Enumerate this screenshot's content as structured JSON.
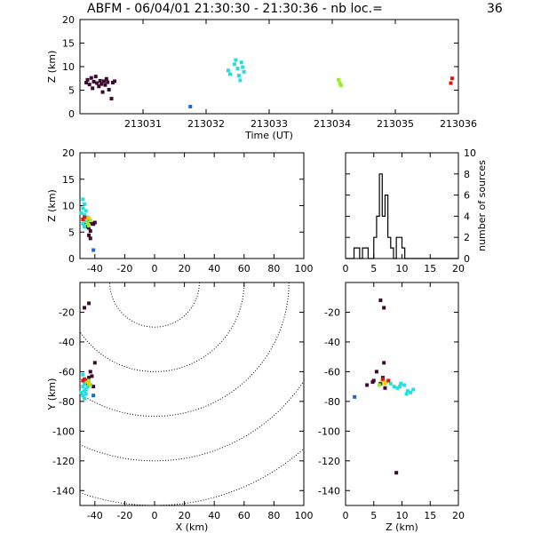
{
  "header": {
    "title": "ABFM - 06/04/01 21:30:30 - 21:30:36 - nb loc.=",
    "count": "36"
  },
  "chart_data": [
    {
      "id": "time_panel",
      "type": "scatter",
      "xlabel": "Time (UT)",
      "ylabel": "Z (km)",
      "xlim": [
        213030.0,
        213036.0
      ],
      "ylim": [
        0,
        20
      ],
      "xticks": [
        213031,
        213032,
        213033,
        213034,
        213035,
        213036
      ],
      "yticks": [
        0,
        5,
        10,
        15,
        20
      ],
      "series": [
        {
          "color": "#3c0a30",
          "points": [
            [
              213030.1,
              6.6
            ],
            [
              213030.12,
              7.2
            ],
            [
              213030.15,
              6.2
            ],
            [
              213030.18,
              7.6
            ],
            [
              213030.2,
              5.4
            ],
            [
              213030.22,
              6.8
            ],
            [
              213030.25,
              7.9
            ],
            [
              213030.27,
              6.5
            ],
            [
              213030.3,
              5.8
            ],
            [
              213030.32,
              7.0
            ],
            [
              213030.34,
              6.3
            ],
            [
              213030.36,
              4.6
            ],
            [
              213030.38,
              6.9
            ],
            [
              213030.4,
              6.1
            ],
            [
              213030.42,
              7.4
            ],
            [
              213030.44,
              6.7
            ],
            [
              213030.46,
              5.1
            ],
            [
              213030.5,
              3.2
            ],
            [
              213030.52,
              6.6
            ],
            [
              213030.55,
              6.9
            ]
          ]
        },
        {
          "color": "#1a66dd",
          "points": [
            [
              213031.75,
              1.5
            ]
          ]
        },
        {
          "color": "#22e0e0",
          "points": [
            [
              213032.35,
              9.2
            ],
            [
              213032.38,
              8.4
            ],
            [
              213032.45,
              10.5
            ],
            [
              213032.47,
              11.4
            ],
            [
              213032.5,
              9.6
            ],
            [
              213032.52,
              8.1
            ],
            [
              213032.54,
              7.1
            ],
            [
              213032.56,
              10.9
            ],
            [
              213032.58,
              9.9
            ],
            [
              213032.6,
              8.9
            ]
          ]
        },
        {
          "color": "#99ee22",
          "points": [
            [
              213034.1,
              7.2
            ],
            [
              213034.12,
              6.5
            ],
            [
              213034.14,
              6.0
            ]
          ]
        },
        {
          "color": "#ee1111",
          "points": [
            [
              213035.88,
              6.5
            ],
            [
              213035.9,
              7.5
            ]
          ]
        }
      ]
    },
    {
      "id": "xz_panel",
      "type": "scatter",
      "ylabel": "Z (km)",
      "xlim": [
        -50,
        100
      ],
      "ylim": [
        0,
        20
      ],
      "xticks": [
        -40,
        -20,
        0,
        20,
        40,
        60,
        80,
        100
      ],
      "yticks": [
        0,
        5,
        10,
        15,
        20
      ],
      "series": [
        {
          "color": "#3c0a30",
          "points": [
            [
              -46,
              6.8
            ],
            [
              -44,
              7.0
            ],
            [
              -43,
              5.2
            ],
            [
              -41,
              6.5
            ],
            [
              -40,
              6.8
            ],
            [
              -44,
              4.4
            ],
            [
              -43,
              3.8
            ],
            [
              -45,
              6.0
            ],
            [
              -42,
              6.6
            ],
            [
              -44,
              5.8
            ]
          ]
        },
        {
          "color": "#1a66dd",
          "points": [
            [
              -41,
              1.6
            ]
          ]
        },
        {
          "color": "#22e0e0",
          "points": [
            [
              -48,
              11.2
            ],
            [
              -47,
              10.3
            ],
            [
              -48,
              9.5
            ],
            [
              -46,
              9.0
            ],
            [
              -49,
              8.6
            ],
            [
              -47,
              8.2
            ],
            [
              -45,
              7.8
            ],
            [
              -46,
              7.0
            ],
            [
              -48,
              6.6
            ],
            [
              -47,
              6.0
            ]
          ]
        },
        {
          "color": "#99ee22",
          "points": [
            [
              -45,
              6.8
            ],
            [
              -44,
              6.2
            ],
            [
              -43,
              7.2
            ]
          ]
        },
        {
          "color": "#ee1111",
          "points": [
            [
              -48,
              7.4
            ],
            [
              -47,
              7.8
            ]
          ]
        },
        {
          "color": "#eecc00",
          "points": [
            [
              -44,
              7.6
            ]
          ]
        }
      ]
    },
    {
      "id": "histogram",
      "type": "bar",
      "ylabel": "number of sources",
      "xlim": [
        0,
        20
      ],
      "ylim": [
        0,
        10
      ],
      "xticks": [
        0,
        5,
        10,
        15,
        20
      ],
      "yticks": [
        0,
        2,
        4,
        6,
        8,
        10
      ],
      "bin_edges": [
        0,
        0.5,
        1,
        1.5,
        2,
        2.5,
        3,
        3.5,
        4,
        4.5,
        5,
        5.5,
        6,
        6.5,
        7,
        7.5,
        8,
        8.5,
        9,
        9.5,
        10,
        10.5,
        11,
        11.5,
        12,
        20
      ],
      "counts": [
        0,
        0,
        0,
        1,
        1,
        0,
        1,
        1,
        0,
        0,
        2,
        4,
        8,
        4,
        6,
        2,
        1,
        0,
        2,
        2,
        1,
        0,
        0,
        0,
        0
      ]
    },
    {
      "id": "xy_panel",
      "type": "scatter",
      "xlabel": "X (km)",
      "ylabel": "Y (km)",
      "xlim": [
        -50,
        100
      ],
      "ylim": [
        -150,
        0
      ],
      "xticks": [
        -40,
        -20,
        0,
        20,
        40,
        60,
        80,
        100
      ],
      "yticks": [
        -20,
        -40,
        -60,
        -80,
        -100,
        -120,
        -140
      ],
      "range_circles": {
        "center": [
          0,
          0
        ],
        "radii": [
          30,
          60,
          90,
          120,
          150
        ]
      },
      "series": [
        {
          "color": "#3c0a30",
          "points": [
            [
              -44,
              -14
            ],
            [
              -47,
              -17
            ],
            [
              -40,
              -54
            ],
            [
              -43,
              -60
            ],
            [
              -42,
              -63
            ],
            [
              -44,
              -64
            ],
            [
              -45,
              -66
            ],
            [
              -46,
              -68
            ],
            [
              -43,
              -69
            ],
            [
              -41,
              -70
            ]
          ]
        },
        {
          "color": "#1a66dd",
          "points": [
            [
              -41,
              -76
            ]
          ]
        },
        {
          "color": "#22e0e0",
          "points": [
            [
              -48,
              -62
            ],
            [
              -47,
              -68
            ],
            [
              -48,
              -70
            ],
            [
              -46,
              -72
            ],
            [
              -47,
              -73
            ],
            [
              -49,
              -74
            ],
            [
              -46,
              -75
            ],
            [
              -48,
              -76
            ],
            [
              -47,
              -78
            ],
            [
              -45,
              -70
            ]
          ]
        },
        {
          "color": "#99ee22",
          "points": [
            [
              -45,
              -67
            ],
            [
              -44,
              -66
            ],
            [
              -43,
              -69
            ]
          ]
        },
        {
          "color": "#ee1111",
          "points": [
            [
              -48,
              -66
            ],
            [
              -47,
              -65
            ]
          ]
        },
        {
          "color": "#eecc00",
          "points": [
            [
              -44,
              -68
            ]
          ]
        }
      ]
    },
    {
      "id": "zy_panel",
      "type": "scatter",
      "xlabel": "Z (km)",
      "xlim": [
        0,
        20
      ],
      "ylim": [
        -150,
        0
      ],
      "xticks": [
        0,
        5,
        10,
        15,
        20
      ],
      "yticks": [
        -20,
        -40,
        -60,
        -80,
        -100,
        -120,
        -140
      ],
      "series": [
        {
          "color": "#3c0a30",
          "points": [
            [
              6.2,
              -12
            ],
            [
              6.8,
              -17
            ],
            [
              6.8,
              -54
            ],
            [
              5.5,
              -60
            ],
            [
              3.8,
              -69
            ],
            [
              4.8,
              -67
            ],
            [
              6.2,
              -68
            ],
            [
              7.0,
              -71
            ],
            [
              5.0,
              -66
            ],
            [
              6.6,
              -64
            ]
          ]
        },
        {
          "color": "#1a66dd",
          "points": [
            [
              1.6,
              -77
            ]
          ]
        },
        {
          "color": "#22e0e0",
          "points": [
            [
              8.0,
              -68
            ],
            [
              8.6,
              -70
            ],
            [
              9.2,
              -71
            ],
            [
              9.8,
              -68
            ],
            [
              10.4,
              -69
            ],
            [
              11.0,
              -73
            ],
            [
              11.5,
              -74
            ],
            [
              12.0,
              -72
            ],
            [
              10.8,
              -75
            ],
            [
              9.6,
              -70
            ]
          ]
        },
        {
          "color": "#99ee22",
          "points": [
            [
              7.2,
              -67
            ],
            [
              6.5,
              -66
            ],
            [
              6.0,
              -69
            ]
          ]
        },
        {
          "color": "#ee1111",
          "points": [
            [
              7.6,
              -66
            ],
            [
              6.6,
              -65
            ]
          ]
        },
        {
          "color": "#eecc00",
          "points": [
            [
              7.0,
              -68
            ]
          ]
        },
        {
          "color": "#3c0a30",
          "points": [
            [
              9.0,
              -128
            ]
          ]
        }
      ]
    }
  ]
}
